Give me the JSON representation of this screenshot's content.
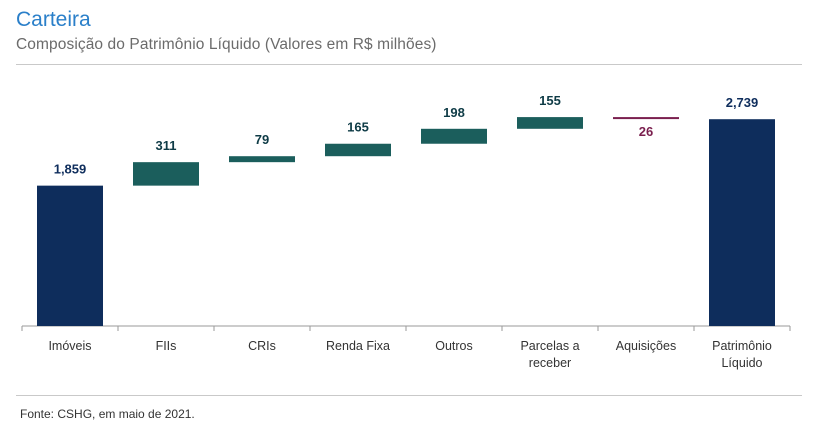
{
  "header": {
    "title": "Carteira",
    "subtitle": "Composição do Patrimônio Líquido (Valores em R$ milhões)"
  },
  "footer": {
    "source": "Fonte: CSHG, em maio de 2021."
  },
  "colors": {
    "total": "#0e2d5c",
    "increase": "#1b5e5c",
    "decrease": "#7a1f4e",
    "axis": "#9a9a9a",
    "label_total": "#0e2d5c",
    "label_increase": "#0e3b46"
  },
  "chart_data": {
    "type": "bar",
    "subtype": "waterfall",
    "title": "Composição do Patrimônio Líquido (Valores em R$ milhões)",
    "xlabel": "",
    "ylabel": "",
    "ylim": [
      0,
      3300
    ],
    "categories": [
      [
        "Imóveis"
      ],
      [
        "FIIs"
      ],
      [
        "CRIs"
      ],
      [
        "Renda Fixa"
      ],
      [
        "Outros"
      ],
      [
        "Parcelas a",
        "receber"
      ],
      [
        "Aquisições"
      ],
      [
        "Patrimônio",
        "Líquido"
      ]
    ],
    "values": [
      1859,
      311,
      79,
      165,
      198,
      155,
      -26,
      2739
    ],
    "labels": [
      "1,859",
      "311",
      "79",
      "165",
      "198",
      "155",
      "26",
      "2,739"
    ],
    "kinds": [
      "total",
      "increase",
      "increase",
      "increase",
      "increase",
      "increase",
      "decrease",
      "total"
    ]
  }
}
